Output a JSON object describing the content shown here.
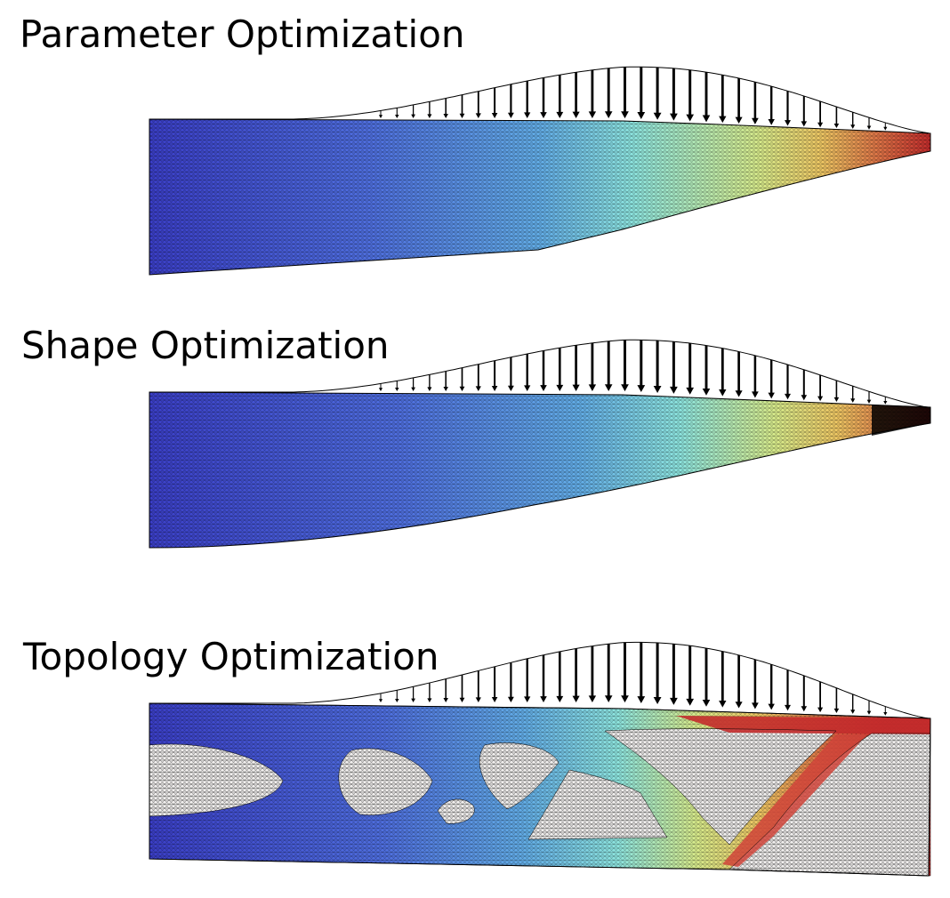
{
  "panels": [
    {
      "title": "Parameter Optimization",
      "kind": "parameter"
    },
    {
      "title": "Shape Optimization",
      "kind": "shape"
    },
    {
      "title": "Topology Optimization",
      "kind": "topology"
    }
  ],
  "load": {
    "arrow_count": 32,
    "distribution": "increasing toward free end, peaking near 3/4 span"
  },
  "colormap": {
    "name": "jet-like",
    "stops": [
      "#3b3fc8",
      "#4f6fe0",
      "#63aee8",
      "#8ee6e0",
      "#d8ec8c",
      "#efc864",
      "#e07848",
      "#c42c2c"
    ]
  },
  "colors": {
    "void": "#f1efee",
    "mesh_line": "#111111",
    "arrow": "#000000"
  }
}
